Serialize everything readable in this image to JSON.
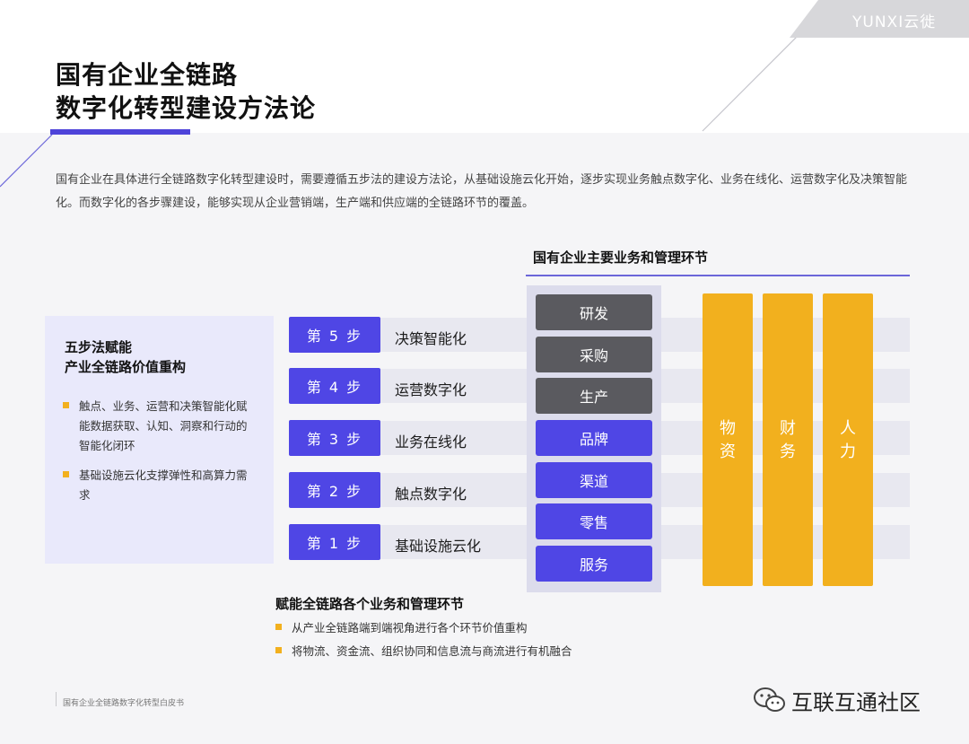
{
  "header": {
    "title_line1": "国有企业全链路",
    "title_line2": "数字化转型建设方法论",
    "brand": "YUNXI云徙"
  },
  "intro": "国有企业在具体进行全链路数字化转型建设时，需要遵循五步法的建设方法论，从基础设施云化开始，逐步实现业务触点数字化、业务在线化、运营数字化及决策智能化。而数字化的各步骤建设，能够实现从企业营销端，生产端和供应端的全链路环节的覆盖。",
  "panel": {
    "heading_line1": "五步法赋能",
    "heading_line2": "产业全链路价值重构",
    "bullets": [
      "触点、业务、运营和决策智能化赋能数据获取、认知、洞察和行动的智能化闭环",
      "基础设施云化支撑弹性和高算力需求"
    ]
  },
  "steps": [
    {
      "badge": "第 5 步",
      "label": "决策智能化"
    },
    {
      "badge": "第 4 步",
      "label": "运营数字化"
    },
    {
      "badge": "第 3 步",
      "label": "业务在线化"
    },
    {
      "badge": "第 2 步",
      "label": "触点数字化"
    },
    {
      "badge": "第 1 步",
      "label": "基础设施云化"
    }
  ],
  "business": {
    "heading": "国有企业主要业务和管理环节",
    "items": [
      "研发",
      "采购",
      "生产",
      "品牌",
      "渠道",
      "零售",
      "服务"
    ],
    "management": [
      "物资",
      "财务",
      "人力"
    ]
  },
  "empower": {
    "heading": "赋能全链路各个业务和管理环节",
    "bullets": [
      "从产业全链路端到端视角进行各个环节价值重构",
      "将物流、资金流、组织协同和信息流与商流进行有机融合"
    ]
  },
  "footer": {
    "note": "国有企业全链路数字化转型白皮书",
    "community": "互联互通社区"
  },
  "colors": {
    "accent": "#4f46e5",
    "gold": "#f2b01e",
    "dark_box": "#5a5a5f"
  }
}
